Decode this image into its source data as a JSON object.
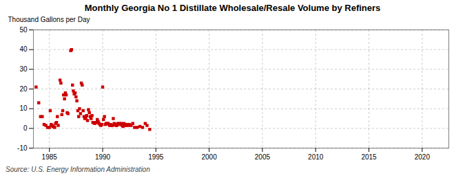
{
  "chart_data": {
    "type": "scatter",
    "title": "Monthly Georgia No 1 Distillate Wholesale/Resale Volume by Refiners",
    "ylabel": "Thousand Gallons per Day",
    "source": "Source: U.S. Energy Information Administration",
    "color": "#cc0000",
    "marker": "square",
    "grid": true,
    "xlim": [
      1983.5,
      2022.5
    ],
    "ylim": [
      -10,
      50
    ],
    "xticks": [
      1985,
      1990,
      1995,
      2000,
      2005,
      2010,
      2015,
      2020
    ],
    "yticks": [
      -10,
      0,
      10,
      20,
      30,
      40,
      50
    ],
    "x": [
      1983.75,
      1984.0,
      1984.17,
      1984.33,
      1984.5,
      1984.67,
      1984.83,
      1985.0,
      1985.08,
      1985.17,
      1985.25,
      1985.33,
      1985.42,
      1985.5,
      1985.58,
      1985.67,
      1985.75,
      1985.83,
      1986.0,
      1986.08,
      1986.17,
      1986.25,
      1986.33,
      1986.42,
      1986.5,
      1986.58,
      1986.67,
      1986.75,
      1987.0,
      1987.08,
      1987.17,
      1987.25,
      1987.33,
      1987.42,
      1987.5,
      1987.58,
      1987.67,
      1987.75,
      1987.83,
      1987.92,
      1988.0,
      1988.08,
      1988.17,
      1988.25,
      1988.33,
      1988.42,
      1988.5,
      1988.58,
      1988.67,
      1988.75,
      1988.83,
      1988.92,
      1989.0,
      1989.08,
      1989.17,
      1989.25,
      1989.33,
      1989.42,
      1989.5,
      1989.58,
      1989.67,
      1989.75,
      1989.83,
      1989.92,
      1990.0,
      1990.08,
      1990.17,
      1990.25,
      1990.33,
      1990.42,
      1990.5,
      1990.58,
      1990.67,
      1990.75,
      1990.83,
      1990.92,
      1991.0,
      1991.08,
      1991.17,
      1991.25,
      1991.33,
      1991.42,
      1991.5,
      1991.58,
      1991.67,
      1991.75,
      1991.83,
      1991.92,
      1992.0,
      1992.08,
      1992.17,
      1992.25,
      1992.33,
      1992.42,
      1992.5,
      1992.67,
      1992.83,
      1993.0,
      1993.25,
      1993.5,
      1993.75,
      1994.0,
      1994.17,
      1994.42
    ],
    "values": [
      21.0,
      13.0,
      6.0,
      6.0,
      2.0,
      1.5,
      0.5,
      0.5,
      9.0,
      2.0,
      1.5,
      1.0,
      0.8,
      0.5,
      2.5,
      3.0,
      6.0,
      1.5,
      24.5,
      23.0,
      7.0,
      9.0,
      17.0,
      15.0,
      18.0,
      17.0,
      8.0,
      7.5,
      39.5,
      40.0,
      22.0,
      19.0,
      17.5,
      18.0,
      16.0,
      14.0,
      9.0,
      6.0,
      10.0,
      7.5,
      23.0,
      22.0,
      9.0,
      6.0,
      5.0,
      5.5,
      6.5,
      4.0,
      9.5,
      8.0,
      6.0,
      5.0,
      6.5,
      3.0,
      3.0,
      2.5,
      3.0,
      3.0,
      4.5,
      3.5,
      2.5,
      2.0,
      1.5,
      2.0,
      21.0,
      4.5,
      6.0,
      2.0,
      2.5,
      2.5,
      2.5,
      2.0,
      1.5,
      2.0,
      1.5,
      1.5,
      5.0,
      2.5,
      2.0,
      1.5,
      1.5,
      2.5,
      2.0,
      2.5,
      2.0,
      2.5,
      1.5,
      1.0,
      2.5,
      2.0,
      1.5,
      1.5,
      2.0,
      1.5,
      2.0,
      1.5,
      2.5,
      0.5,
      0.5,
      1.0,
      0.5,
      2.5,
      1.5,
      -0.5
    ]
  }
}
